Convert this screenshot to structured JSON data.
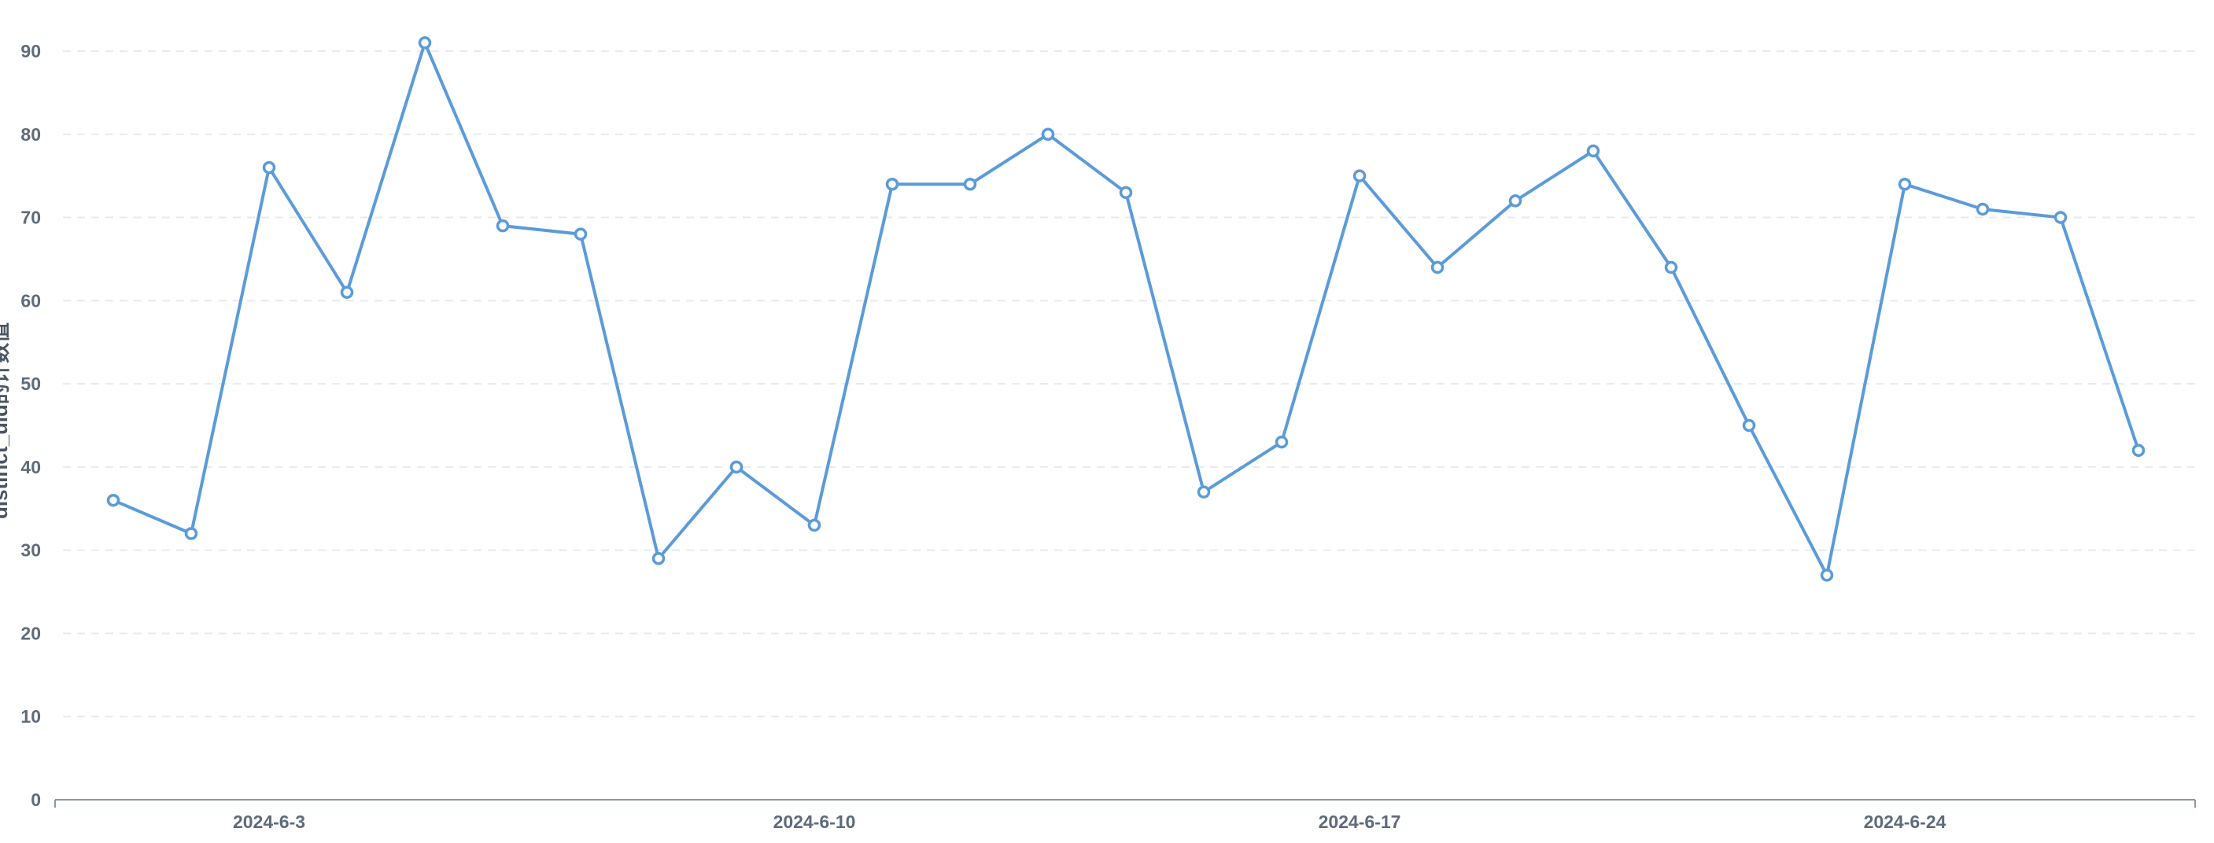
{
  "chart_data": {
    "type": "line",
    "title": "",
    "xlabel": "",
    "ylabel": "distinct_uid的计数值",
    "ylim": [
      0,
      90
    ],
    "yticks": [
      0,
      10,
      20,
      30,
      40,
      50,
      60,
      70,
      80,
      90
    ],
    "grid": true,
    "x": [
      "2024-6-1",
      "2024-6-2",
      "2024-6-3",
      "2024-6-4",
      "2024-6-5",
      "2024-6-6",
      "2024-6-7",
      "2024-6-8",
      "2024-6-9",
      "2024-6-10",
      "2024-6-11",
      "2024-6-12",
      "2024-6-13",
      "2024-6-14",
      "2024-6-15",
      "2024-6-16",
      "2024-6-17",
      "2024-6-18",
      "2024-6-19",
      "2024-6-20",
      "2024-6-21",
      "2024-6-22",
      "2024-6-23",
      "2024-6-24",
      "2024-6-25",
      "2024-6-26",
      "2024-6-27"
    ],
    "xtick_labels": [
      "2024-6-3",
      "2024-6-10",
      "2024-6-17",
      "2024-6-24"
    ],
    "series": [
      {
        "color": "#5b9bd9",
        "values": [
          36,
          32,
          76,
          61,
          91,
          69,
          68,
          29,
          40,
          33,
          74,
          74,
          80,
          73,
          37,
          43,
          75,
          64,
          72,
          78,
          64,
          45,
          27,
          74,
          71,
          70,
          42
        ]
      }
    ]
  }
}
